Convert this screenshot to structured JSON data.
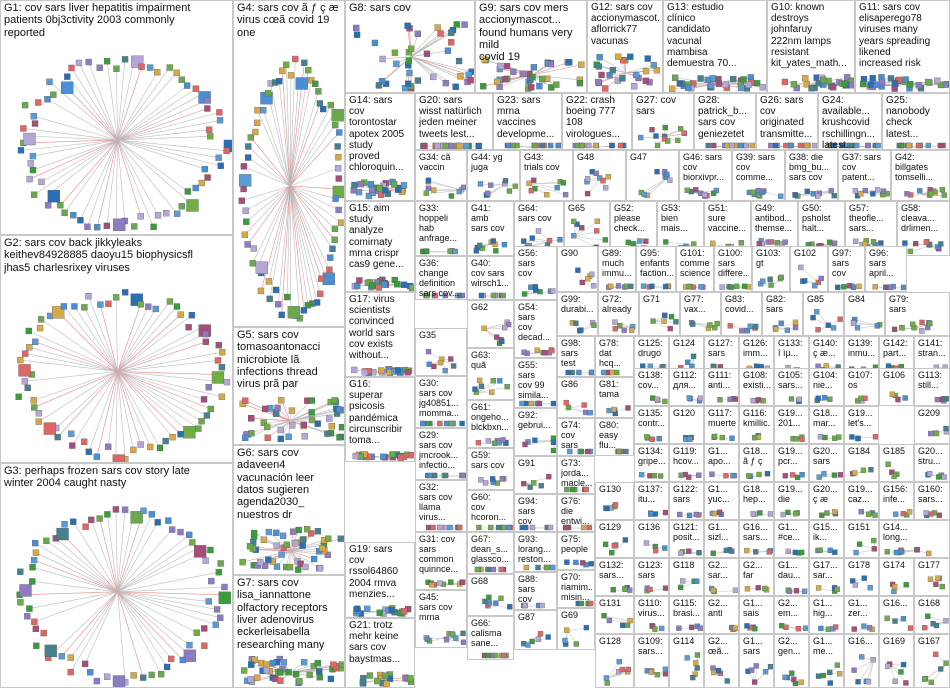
{
  "title": "",
  "groups": [
    {
      "id": "G1",
      "label": "G1: cov sars liver hepatitis impairment\npatients 0bj3ctivity 2003 commonly\nreported"
    },
    {
      "id": "G2",
      "label": "G2: sars cov back jikkyleaks\nkeithev84928885 daoyu15 biophysicsfl\njhas5 charlesrixey viruses"
    },
    {
      "id": "G3",
      "label": "G3: perhaps frozen sars cov story late\nwinter 2004 caught nasty"
    },
    {
      "id": "G4",
      "label": "G4: sars cov ã ƒ ç æ\nvirus cœã covid 19\none"
    },
    {
      "id": "G5",
      "label": "G5: sars cov\ntomasoantonacci\nmicrobiote lã\ninfections thread\nvirus prã par"
    },
    {
      "id": "G6",
      "label": "G6: sars cov\nadaveen4\nvacunación leer\ndatos sugieren\nagenda2030_\nnuestros dr"
    },
    {
      "id": "G7",
      "label": "G7: sars cov\nlisa_iannattone\nolfactory receptors\nliver adenovirus\neckerleisabella\nresearching many"
    },
    {
      "id": "G8",
      "label": "G8: sars cov"
    },
    {
      "id": "G9",
      "label": "G9: sars cov mers\naccionymascot...\nfound humans very mild\ncovid 19"
    },
    {
      "id": "G12",
      "label": "G12: sars cov\naccionymascot...\naflorrick77\nvacunas"
    },
    {
      "id": "G13",
      "label": "G13: estudio\nclínico\ncandidato\nvacunal\nmambisa\ndemuestra 70..."
    },
    {
      "id": "G10",
      "label": "G10: known\ndestroys\njohnfaruy\n222nm lamps\nresistant\nkit_yates_math..."
    },
    {
      "id": "G11",
      "label": "G11: sars cov\nelisaperego78\nviruses many\nyears spreading\nlikened\nincreased risk"
    },
    {
      "id": "G14",
      "label": "G14: sars\ncov\ntorontostar\napotex 2005\nstudy\nproved\nchloroquin..."
    },
    {
      "id": "G20",
      "label": "G20: sars\nwisst natürlich\njeden meiner\ntweets lest..."
    },
    {
      "id": "G23",
      "label": "G23: sars\nmrna\nvaccines\ndevelopme..."
    },
    {
      "id": "G22",
      "label": "G22: crash\nboeing 777\n108\nvirologues..."
    },
    {
      "id": "G27",
      "label": "G27: cov\nsars"
    },
    {
      "id": "G28",
      "label": "G28:\npatrick_b...\nsars cov\ngeniezetet"
    },
    {
      "id": "G26",
      "label": "G26: sars\ncov\noriginated\ntransmitte..."
    },
    {
      "id": "G24",
      "label": "G24:\navailable...\nkrushcovid\nrschillingn...\nlatest..."
    },
    {
      "id": "G25",
      "label": "G25:\nnanobody\ncheck\nlatest..."
    },
    {
      "id": "G34",
      "label": "G34: cã\nvaccin"
    },
    {
      "id": "G44",
      "label": "G44: yg\njuga"
    },
    {
      "id": "G43",
      "label": "G43:\ntrials cov"
    },
    {
      "id": "G48",
      "label": "G48"
    },
    {
      "id": "G47",
      "label": "G47"
    },
    {
      "id": "G46",
      "label": "G46: sars\ncov\nbiorxivpr..."
    },
    {
      "id": "G39",
      "label": "G39: sars\ncov\ncomme..."
    },
    {
      "id": "G38",
      "label": "G38: die\nbmg_bu...\nsars cov"
    },
    {
      "id": "G37",
      "label": "G37: sars\ncov\npatent..."
    },
    {
      "id": "G42",
      "label": "G42:\nbillgates\ntomselli..."
    },
    {
      "id": "G15",
      "label": "G15: aim\nstudy\nanalyze\ncomirnaty\nmrna crispr\ncas9 gene..."
    },
    {
      "id": "G33",
      "label": "G33:\nhoppeli\nhab\nanfrage..."
    },
    {
      "id": "G41",
      "label": "G41:\namb\nsars cov"
    },
    {
      "id": "G64",
      "label": "G64:\nsars cov"
    },
    {
      "id": "G65",
      "label": "G65"
    },
    {
      "id": "G52",
      "label": "G52:\nplease\ncheck..."
    },
    {
      "id": "G53",
      "label": "G53:\nbien\nmais..."
    },
    {
      "id": "G51",
      "label": "G51:\nsure\nvaccine..."
    },
    {
      "id": "G49",
      "label": "G49:\nantibod...\nthemse..."
    },
    {
      "id": "G50",
      "label": "G50:\npsholst\nhalt..."
    },
    {
      "id": "G57",
      "label": "G57:\ntheofle...\nsars..."
    },
    {
      "id": "G58",
      "label": "G58:\ncleava...\ndrlimen..."
    },
    {
      "id": "G36",
      "label": "G36:\nchange\ndefinition\nsars cov..."
    },
    {
      "id": "G40",
      "label": "G40:\ncov sars\nwirsch1..."
    },
    {
      "id": "G56",
      "label": "G56:\nsars\ncov"
    },
    {
      "id": "G90",
      "label": "G90"
    },
    {
      "id": "G89",
      "label": "G89:\nmuch\nimmu..."
    },
    {
      "id": "G95",
      "label": "G95:\nenfants\nfaction..."
    },
    {
      "id": "G101",
      "label": "G101:\ncomme\nscience"
    },
    {
      "id": "G100",
      "label": "G100:\nsars\ndiffere..."
    },
    {
      "id": "G103",
      "label": "G103:\ngt"
    },
    {
      "id": "G102",
      "label": "G102"
    },
    {
      "id": "G97",
      "label": "G97:\nsars\ncov"
    },
    {
      "id": "G96",
      "label": "G96:\nsars\napril..."
    },
    {
      "id": "G17",
      "label": "G17: virus\nscientists\nconvinced\nworld sars\ncov exists\nwithout..."
    },
    {
      "id": "G62",
      "label": "G62"
    },
    {
      "id": "G99",
      "label": "G99:\ndurabi..."
    },
    {
      "id": "G72",
      "label": "G72:\nalready"
    },
    {
      "id": "G71",
      "label": "G71"
    },
    {
      "id": "G77",
      "label": "G77:\nvax..."
    },
    {
      "id": "G83",
      "label": "G83:\ncovid..."
    },
    {
      "id": "G82",
      "label": "G82:\nsars"
    },
    {
      "id": "G85",
      "label": "G85"
    },
    {
      "id": "G84",
      "label": "G84"
    },
    {
      "id": "G79",
      "label": "G79:\nsars"
    },
    {
      "id": "G35",
      "label": "G35"
    },
    {
      "id": "G54",
      "label": "G54:\nsars\ncov\ndecad..."
    },
    {
      "id": "G98",
      "label": "G98:\nsars\ntest"
    },
    {
      "id": "G78",
      "label": "G78:\ndat\nhcq..."
    },
    {
      "id": "G125",
      "label": "G125:\ndrugo"
    },
    {
      "id": "G124",
      "label": "G124"
    },
    {
      "id": "G127",
      "label": "G127:\nsars"
    },
    {
      "id": "G126",
      "label": "G126:\nimm..."
    },
    {
      "id": "G133",
      "label": "G133:\nî ìµ..."
    },
    {
      "id": "G140",
      "label": "G140:\nç æ..."
    },
    {
      "id": "G139",
      "label": "G139:\ninmu..."
    },
    {
      "id": "G142",
      "label": "G142:\npart..."
    },
    {
      "id": "G141",
      "label": "G141:\nstran..."
    },
    {
      "id": "G16",
      "label": "G16:\nsuperar\npsicosis\npandémica\ncircunscribir\ntoma..."
    },
    {
      "id": "G63",
      "label": "G63:\nquã"
    },
    {
      "id": "G55",
      "label": "G55:\nsars\ncov 99\nsimila..."
    },
    {
      "id": "G86",
      "label": "G86"
    },
    {
      "id": "G81",
      "label": "G81:\ntama"
    },
    {
      "id": "G138",
      "label": "G138:\ncov..."
    },
    {
      "id": "G112",
      "label": "G112:\nдля..."
    },
    {
      "id": "G111",
      "label": "G111:\nanti..."
    },
    {
      "id": "G108",
      "label": "G108:\nexisti..."
    },
    {
      "id": "G105",
      "label": "G105:\nsars..."
    },
    {
      "id": "G104",
      "label": "G104:\nnie..."
    },
    {
      "id": "G107",
      "label": "G107:\nos"
    },
    {
      "id": "G106",
      "label": "G106"
    },
    {
      "id": "G113",
      "label": "G113:\nstill..."
    },
    {
      "id": "G30",
      "label": "G30:\nsars cov\njg40851...\nmomma..."
    },
    {
      "id": "G61",
      "label": "G61:\nongeho...\nblckbxn..."
    },
    {
      "id": "G92",
      "label": "G92:\ngebrui..."
    },
    {
      "id": "G135",
      "label": "G135:\ncontr..."
    },
    {
      "id": "G120",
      "label": "G120"
    },
    {
      "id": "G117",
      "label": "G117:\nmuerte..."
    },
    {
      "id": "G116",
      "label": "G116:\nkmillic..."
    },
    {
      "id": "G19a",
      "label": "G19...\n201..."
    },
    {
      "id": "G18a",
      "label": "G18...\nmar..."
    },
    {
      "id": "G19b",
      "label": "G19...\nlet's..."
    },
    {
      "id": "G74",
      "label": "G74:\ncov\nsars"
    },
    {
      "id": "G80",
      "label": "G80:\neasy\nflu..."
    },
    {
      "id": "G134",
      "label": "G134:\ngripe..."
    },
    {
      "id": "G119",
      "label": "G119:\nhcov..."
    },
    {
      "id": "G1a",
      "label": "G1...\napo..."
    },
    {
      "id": "G18b",
      "label": "G18...\nã ƒ ç"
    },
    {
      "id": "G19c",
      "label": "G19...\npcr..."
    },
    {
      "id": "G20a",
      "label": "G20...\nsars"
    },
    {
      "id": "G184",
      "label": "G184"
    },
    {
      "id": "G185",
      "label": "G185"
    },
    {
      "id": "G20b",
      "label": "G20...\nstru..."
    },
    {
      "id": "G209",
      "label": "G209"
    },
    {
      "id": "G29",
      "label": "G29:\nsars cov\njmcrook...\ninfectio..."
    },
    {
      "id": "G59",
      "label": "G59:\nsars cov"
    },
    {
      "id": "G91",
      "label": "G91"
    },
    {
      "id": "G73",
      "label": "G73:\njorda...\nmacle..."
    },
    {
      "id": "G130",
      "label": "G130"
    },
    {
      "id": "G137",
      "label": "G137:\nitu..."
    },
    {
      "id": "G122",
      "label": "G122:\nsars"
    },
    {
      "id": "G1b",
      "label": "G1...\nyuc..."
    },
    {
      "id": "G18c",
      "label": "G18...\nhep..."
    },
    {
      "id": "G19d",
      "label": "G19...\ndie"
    },
    {
      "id": "G20c",
      "label": "G20...\nç æ"
    },
    {
      "id": "G19e",
      "label": "G19...\ncaz..."
    },
    {
      "id": "G156",
      "label": "G156:\ninfe..."
    },
    {
      "id": "G160",
      "label": "G160:\nsars..."
    },
    {
      "id": "G18d",
      "label": "G18...\nrvbr..."
    },
    {
      "id": "G20d",
      "label": "G20...\nウイ..."
    },
    {
      "id": "G32",
      "label": "G32:\nsars cov\nllama\nvirus..."
    },
    {
      "id": "G60",
      "label": "G60:\ncov\nhcoron..."
    },
    {
      "id": "G94",
      "label": "G94:\nsars\ncov"
    },
    {
      "id": "G76",
      "label": "G76:\ndie\nentwi..."
    },
    {
      "id": "G129",
      "label": "G129"
    },
    {
      "id": "G136",
      "label": "G136"
    },
    {
      "id": "G121",
      "label": "G121:\nposit..."
    },
    {
      "id": "G1c",
      "label": "G1...\nsizl..."
    },
    {
      "id": "G16a",
      "label": "G16...\nsars..."
    },
    {
      "id": "G1d",
      "label": "G1...\n#ce..."
    },
    {
      "id": "G15a",
      "label": "G15...\nik..."
    },
    {
      "id": "G151",
      "label": "G151"
    },
    {
      "id": "G14a",
      "label": "G14...\nlong..."
    },
    {
      "id": "G67",
      "label": "G67:\ndean_s...\nglassco..."
    },
    {
      "id": "G93",
      "label": "G93:\nlorang...\nreston..."
    },
    {
      "id": "G75",
      "label": "G75:\npeople"
    },
    {
      "id": "G132",
      "label": "G132:\nsars..."
    },
    {
      "id": "G123",
      "label": "G123:\nsars"
    },
    {
      "id": "G118",
      "label": "G118"
    },
    {
      "id": "G2a",
      "label": "G2...\nsar..."
    },
    {
      "id": "G2b",
      "label": "G2...\nfar"
    },
    {
      "id": "G1e",
      "label": "G1...\ndau..."
    },
    {
      "id": "G17a",
      "label": "G17...\nsar..."
    },
    {
      "id": "G178",
      "label": "G178"
    },
    {
      "id": "G174",
      "label": "G174"
    },
    {
      "id": "G177",
      "label": "G177"
    },
    {
      "id": "G19f",
      "label": "G19: sars\ncov\nrssol64860\n2004 rmva\nmenzies..."
    },
    {
      "id": "G31",
      "label": "G31: cov\nsars\ncommon\nquinnce..."
    },
    {
      "id": "G68",
      "label": "G68"
    },
    {
      "id": "G88",
      "label": "G88:\nsars\ncov"
    },
    {
      "id": "G70",
      "label": "G70:\nriamim...\nmisin..."
    },
    {
      "id": "G131",
      "label": "G131"
    },
    {
      "id": "G110",
      "label": "G110:\nvirus..."
    },
    {
      "id": "G115",
      "label": "G115:\nbrasi..."
    },
    {
      "id": "G2c",
      "label": "G2...\nanti"
    },
    {
      "id": "G1f",
      "label": "G1...\nsais"
    },
    {
      "id": "G2d",
      "label": "G2...\nem..."
    },
    {
      "id": "G1g",
      "label": "G1...\nhig..."
    },
    {
      "id": "G1h",
      "label": "G1...\nzer..."
    },
    {
      "id": "G16b",
      "label": "G16..."
    },
    {
      "id": "G168",
      "label": "G168"
    },
    {
      "id": "G166",
      "label": "G166"
    },
    {
      "id": "G21",
      "label": "G21: trotz\nmehr keine\nsars cov\nbaystmas..."
    },
    {
      "id": "G45",
      "label": "G45:\nsars cov\nmrna"
    },
    {
      "id": "G66",
      "label": "G66:\ncalisma\nsane..."
    },
    {
      "id": "G87",
      "label": "G87"
    },
    {
      "id": "G69",
      "label": "G69"
    },
    {
      "id": "G128",
      "label": "G128"
    },
    {
      "id": "G109",
      "label": "G109:\nsars..."
    },
    {
      "id": "G114",
      "label": "G114"
    },
    {
      "id": "G2e",
      "label": "G2...\nœã..."
    },
    {
      "id": "G1i",
      "label": "G1...\nsars"
    },
    {
      "id": "G2f",
      "label": "G2...\ngen..."
    },
    {
      "id": "G1j",
      "label": "G1...\nme..."
    },
    {
      "id": "G16c",
      "label": "G16..."
    },
    {
      "id": "G169",
      "label": "G169"
    },
    {
      "id": "G167",
      "label": "G167"
    }
  ]
}
